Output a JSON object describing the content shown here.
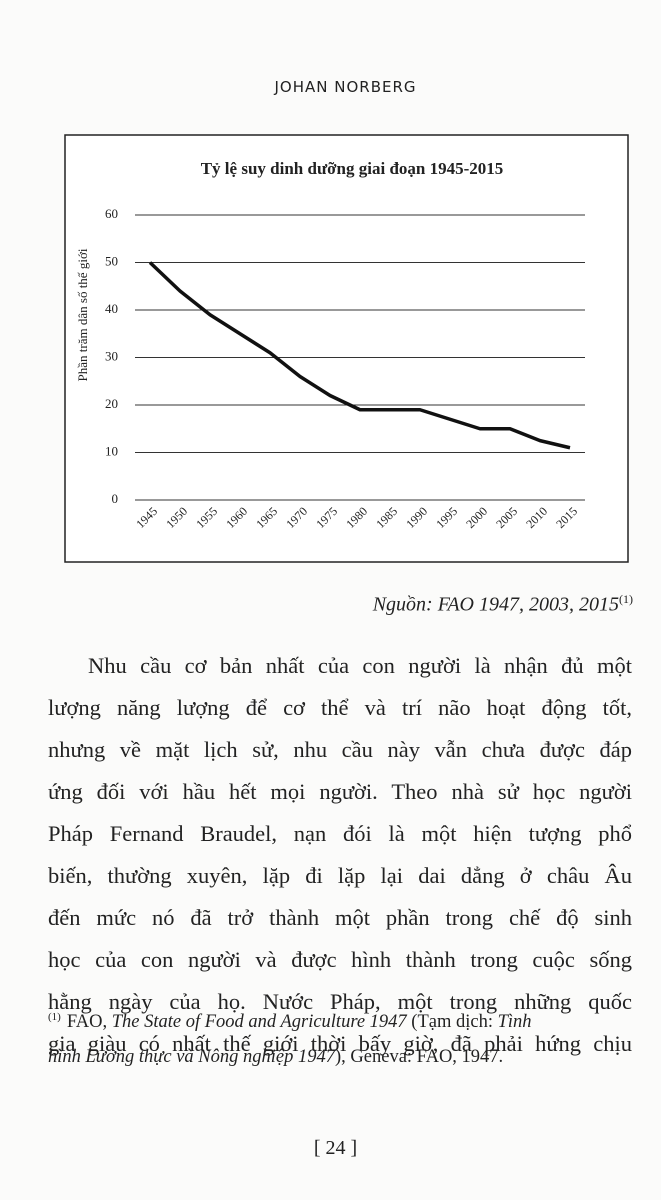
{
  "header": {
    "title": "JOHAN NORBERG"
  },
  "chart_data": {
    "type": "line",
    "title": "Tỷ lệ suy dinh dưỡng giai đoạn 1945-2015",
    "y_label": "Phần trăm dân số thế giới",
    "categories": [
      "1945",
      "1950",
      "1955",
      "1960",
      "1965",
      "1970",
      "1975",
      "1980",
      "1985",
      "1990",
      "1995",
      "2000",
      "2005",
      "2010",
      "2015"
    ],
    "values": [
      50,
      44,
      39,
      35,
      31,
      26,
      22,
      19,
      19,
      19,
      17,
      15,
      15,
      12.5,
      11
    ],
    "color": "#111111",
    "ylim": [
      0,
      60
    ],
    "yticks": [
      0,
      10,
      20,
      30,
      40,
      50,
      60
    ],
    "grid": true
  },
  "caption": {
    "text": "Nguồn: FAO 1947, 2003, 2015",
    "note_ref": "(1)"
  },
  "body": {
    "lines": [
      "Nhu cầu cơ bản nhất của con người là nhận đủ một",
      "lượng năng lượng để cơ thể và trí não hoạt động tốt,",
      "nhưng về mặt lịch sử, nhu cầu này vẫn chưa được đáp",
      "ứng đối với hầu hết mọi người. Theo nhà sử học người",
      "Pháp Fernand Braudel, nạn đói là một hiện tượng phổ",
      "biến, thường xuyên, lặp đi lặp lại dai dẳng ở châu Âu",
      "đến mức nó đã trở thành một phần trong chế độ sinh",
      "học của con người và được hình thành trong cuộc sống",
      "hằng ngày của họ. Nước Pháp, một trong những quốc",
      "gia giàu có nhất thế giới thời bấy giờ, đã phải hứng chịu"
    ]
  },
  "footnote": {
    "marker": "(1)",
    "lines": [
      [
        {
          "text": "FAO, ",
          "italic": false
        },
        {
          "text": "The State of Food and Agriculture 1947",
          "italic": true
        },
        {
          "text": " (Tạm dịch: ",
          "italic": false
        },
        {
          "text": "Tình",
          "italic": true
        }
      ],
      [
        {
          "text": "hình Lương thực và Nông nghiệp 1947",
          "italic": true
        },
        {
          "text": "), Geneva: FAO, 1947.",
          "italic": false
        }
      ]
    ]
  },
  "page_number": "[ 24 ]"
}
